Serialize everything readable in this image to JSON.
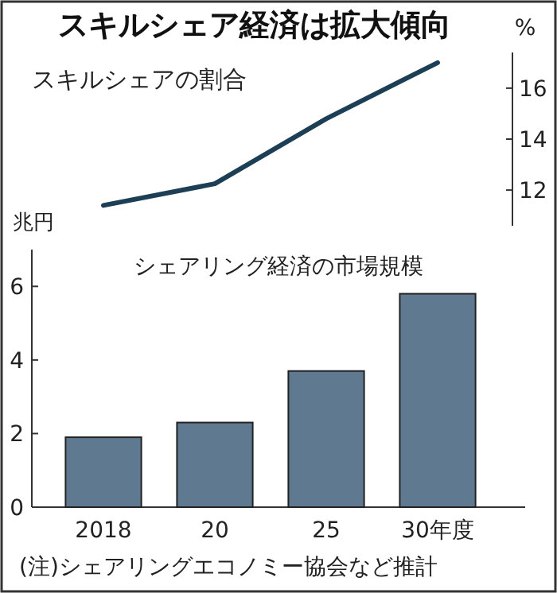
{
  "chart_data": [
    {
      "type": "line",
      "title": "スキルシェア経済は拡大傾向",
      "subtitle": "スキルシェアの割合",
      "ylabel": "%",
      "categories": [
        null,
        null,
        null,
        null
      ],
      "tick_labels": "y",
      "ylim": [
        10.6,
        17.4
      ],
      "yticks": [
        12,
        14,
        16
      ],
      "series": [
        {
          "color": "#1d3f55",
          "values": [
            11.4,
            12.25,
            14.8,
            17.0
          ]
        }
      ],
      "marker": "none",
      "line_style": "solid"
    },
    {
      "type": "bar",
      "title": "シェアリング経済の市場規模",
      "ylabel": "兆円",
      "categories": [
        "2018",
        "20",
        "25",
        "30年度"
      ],
      "ylim": [
        0,
        7
      ],
      "yticks": [
        0,
        2,
        4,
        6
      ],
      "series": [
        {
          "color": "#5f7a90",
          "values": [
            1.9,
            2.3,
            3.7,
            5.8
          ]
        }
      ],
      "annotations": [
        "(注)シェアリングエコノミー協会など推計"
      ]
    }
  ]
}
